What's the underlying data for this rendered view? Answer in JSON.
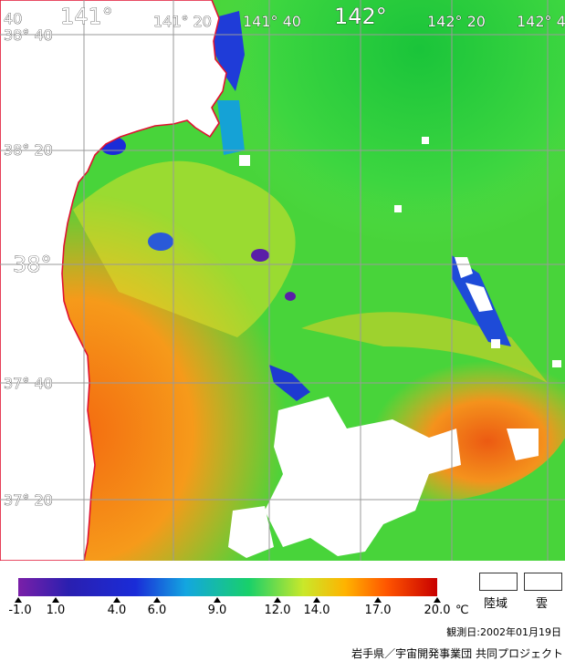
{
  "map": {
    "top_labels": [
      "40",
      "141°",
      "141° 20",
      "141° 40",
      "142°",
      "142° 20",
      "142° 4"
    ],
    "left_labels": [
      "38° 40",
      "38° 20",
      "38°",
      "37° 40",
      "37° 20"
    ]
  },
  "legend": {
    "ticks": [
      "-1.0",
      "1.0",
      "4.0",
      "6.0",
      "9.0",
      "12.0",
      "14.0",
      "17.0",
      "20.0"
    ],
    "unit": "℃",
    "land_label": "陸域",
    "cloud_label": "雲",
    "observation_date": "観測日:2002年01月19日",
    "credit": "岩手県／宇宙開発事業団 共同プロジェクト"
  }
}
